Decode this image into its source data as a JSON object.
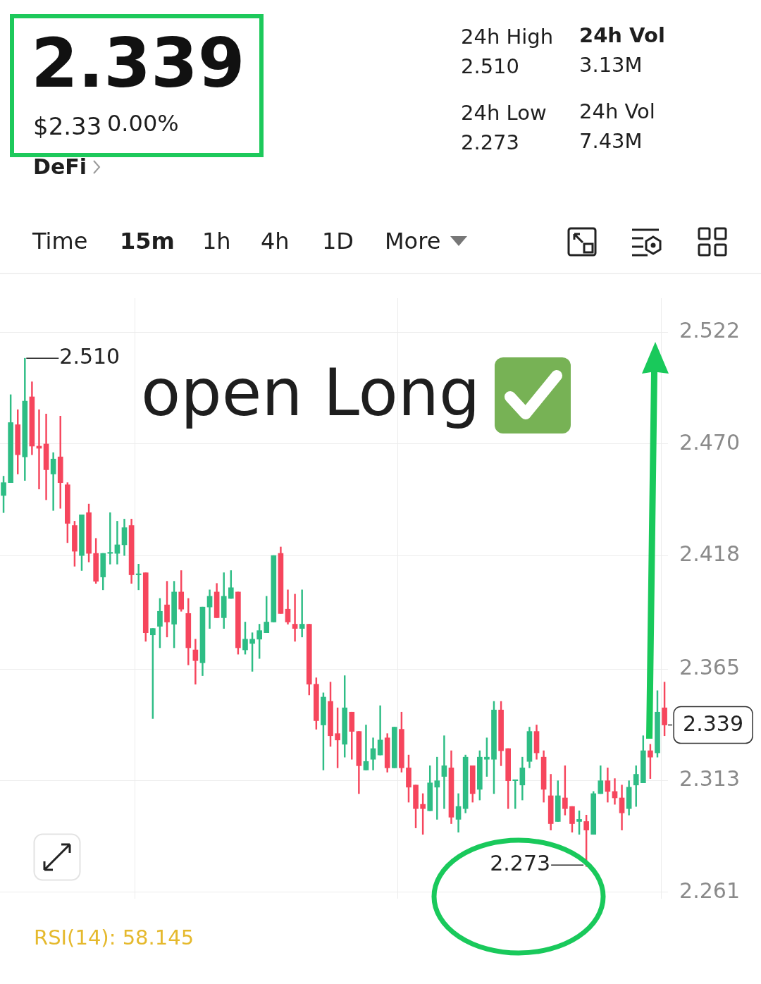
{
  "chart_data": {
    "type": "candlestick",
    "title": "2.339",
    "annotations": [
      "$2.33",
      "0.00%",
      "DeFi",
      "24h High",
      "2.510",
      "24h Vol",
      "3.13M",
      "24h Low",
      "2.273",
      "24h Vol",
      "7.43M",
      "Time",
      "15m",
      "1h",
      "4h",
      "1D",
      "More",
      "open Long",
      "2.510",
      "2.273",
      "RSI(14): 58.145"
    ],
    "categories": [
      null,
      null,
      null,
      null,
      null,
      null,
      null,
      null,
      null,
      null,
      null,
      null,
      null,
      null,
      null,
      null,
      null,
      null,
      null,
      null,
      null,
      null,
      null,
      null,
      null,
      null,
      null,
      null,
      null,
      null,
      null,
      null,
      null,
      null,
      null,
      null,
      null,
      null,
      null,
      null,
      null,
      null,
      null,
      null,
      null,
      null,
      null,
      null,
      null,
      null,
      null,
      null,
      null,
      null,
      null,
      null,
      null,
      null,
      null,
      null,
      null,
      null,
      null,
      null,
      null,
      null,
      null,
      null,
      null,
      null,
      null,
      null,
      null,
      null,
      null,
      null,
      null,
      null,
      null,
      null,
      null,
      null,
      null,
      null,
      null,
      null,
      null,
      null,
      null,
      null,
      null,
      null,
      null,
      null
    ],
    "ohlc": [
      [
        2.446,
        2.455,
        2.438,
        2.452
      ],
      [
        2.452,
        2.493,
        2.452,
        2.48
      ],
      [
        2.479,
        2.486,
        2.456,
        2.465
      ],
      [
        2.464,
        2.51,
        2.453,
        2.49
      ],
      [
        2.492,
        2.499,
        2.465,
        2.469
      ],
      [
        2.469,
        2.486,
        2.449,
        2.468
      ],
      [
        2.47,
        2.484,
        2.444,
        2.458
      ],
      [
        2.456,
        2.466,
        2.439,
        2.463
      ],
      [
        2.464,
        2.483,
        2.44,
        2.452
      ],
      [
        2.451,
        2.452,
        2.424,
        2.433
      ],
      [
        2.432,
        2.434,
        2.413,
        2.42
      ],
      [
        2.418,
        2.437,
        2.411,
        2.437
      ],
      [
        2.438,
        2.442,
        2.415,
        2.419
      ],
      [
        2.419,
        2.426,
        2.405,
        2.406
      ],
      [
        2.408,
        2.419,
        2.402,
        2.419
      ],
      [
        2.419,
        2.438,
        2.414,
        2.419
      ],
      [
        2.419,
        2.434,
        2.414,
        2.423
      ],
      [
        2.423,
        2.435,
        2.418,
        2.431
      ],
      [
        2.432,
        2.435,
        2.405,
        2.409
      ],
      [
        2.409,
        2.414,
        2.402,
        2.409
      ],
      [
        2.41,
        2.41,
        2.378,
        2.382
      ],
      [
        2.381,
        2.384,
        2.342,
        2.384
      ],
      [
        2.385,
        2.398,
        2.375,
        2.392
      ],
      [
        2.395,
        2.406,
        2.38,
        2.387
      ],
      [
        2.386,
        2.406,
        2.375,
        2.401
      ],
      [
        2.401,
        2.411,
        2.392,
        2.393
      ],
      [
        2.391,
        2.398,
        2.367,
        2.375
      ],
      [
        2.374,
        2.379,
        2.358,
        2.369
      ],
      [
        2.368,
        2.394,
        2.362,
        2.394
      ],
      [
        2.394,
        2.402,
        2.384,
        2.399
      ],
      [
        2.401,
        2.405,
        2.389,
        2.389
      ],
      [
        2.389,
        2.41,
        2.384,
        2.399
      ],
      [
        2.398,
        2.411,
        2.398,
        2.403
      ],
      [
        2.401,
        2.401,
        2.372,
        2.375
      ],
      [
        2.374,
        2.387,
        2.372,
        2.379
      ],
      [
        2.377,
        2.382,
        2.364,
        2.379
      ],
      [
        2.379,
        2.386,
        2.37,
        2.383
      ],
      [
        2.382,
        2.399,
        2.382,
        2.387
      ],
      [
        2.387,
        2.418,
        2.387,
        2.418
      ],
      [
        2.419,
        2.422,
        2.391,
        2.391
      ],
      [
        2.393,
        2.402,
        2.386,
        2.387
      ],
      [
        2.386,
        2.4,
        2.378,
        2.384
      ],
      [
        2.384,
        2.402,
        2.38,
        2.386
      ],
      [
        2.386,
        2.386,
        2.353,
        2.358
      ],
      [
        2.358,
        2.361,
        2.337,
        2.341
      ],
      [
        2.339,
        2.354,
        2.318,
        2.352
      ],
      [
        2.35,
        2.359,
        2.329,
        2.334
      ],
      [
        2.335,
        2.347,
        2.319,
        2.332
      ],
      [
        2.33,
        2.362,
        2.324,
        2.347
      ],
      [
        2.345,
        2.345,
        2.323,
        2.336
      ],
      [
        2.336,
        2.336,
        2.307,
        2.32
      ],
      [
        2.318,
        2.339,
        2.318,
        2.322
      ],
      [
        2.323,
        2.333,
        2.318,
        2.328
      ],
      [
        2.325,
        2.348,
        2.325,
        2.332
      ],
      [
        2.333,
        2.335,
        2.317,
        2.319
      ],
      [
        2.319,
        2.338,
        2.319,
        2.338
      ],
      [
        2.337,
        2.345,
        2.317,
        2.319
      ],
      [
        2.319,
        2.325,
        2.303,
        2.31
      ],
      [
        2.311,
        2.311,
        2.291,
        2.3
      ],
      [
        2.302,
        2.307,
        2.288,
        2.3
      ],
      [
        2.299,
        2.32,
        2.299,
        2.312
      ],
      [
        2.31,
        2.324,
        2.295,
        2.313
      ],
      [
        2.315,
        2.334,
        2.3,
        2.32
      ],
      [
        2.319,
        2.327,
        2.293,
        2.296
      ],
      [
        2.295,
        2.307,
        2.289,
        2.301
      ],
      [
        2.3,
        2.325,
        2.298,
        2.324
      ],
      [
        2.32,
        2.32,
        2.303,
        2.307
      ],
      [
        2.309,
        2.327,
        2.304,
        2.324
      ],
      [
        2.323,
        2.333,
        2.315,
        2.324
      ],
      [
        2.323,
        2.35,
        2.307,
        2.346
      ],
      [
        2.346,
        2.35,
        2.32,
        2.327
      ],
      [
        2.328,
        2.328,
        2.3,
        2.313
      ],
      [
        2.313,
        2.313,
        2.3,
        2.313
      ],
      [
        2.311,
        2.324,
        2.304,
        2.319
      ],
      [
        2.322,
        2.338,
        2.319,
        2.336
      ],
      [
        2.336,
        2.339,
        2.323,
        2.326
      ],
      [
        2.324,
        2.327,
        2.303,
        2.309
      ],
      [
        2.306,
        2.316,
        2.29,
        2.293
      ],
      [
        2.294,
        2.313,
        2.294,
        2.306
      ],
      [
        2.305,
        2.32,
        2.297,
        2.3
      ],
      [
        2.301,
        2.301,
        2.289,
        2.293
      ],
      [
        2.294,
        2.299,
        2.288,
        2.295
      ],
      [
        2.294,
        2.297,
        2.273,
        2.29
      ],
      [
        2.288,
        2.308,
        2.288,
        2.307
      ],
      [
        2.307,
        2.32,
        2.307,
        2.313
      ],
      [
        2.313,
        2.319,
        2.303,
        2.308
      ],
      [
        2.308,
        2.314,
        2.302,
        2.305
      ],
      [
        2.305,
        2.311,
        2.29,
        2.298
      ],
      [
        2.3,
        2.313,
        2.297,
        2.31
      ],
      [
        2.311,
        2.32,
        2.301,
        2.316
      ],
      [
        2.312,
        2.334,
        2.312,
        2.327
      ],
      [
        2.327,
        2.33,
        2.314,
        2.324
      ],
      [
        2.326,
        2.355,
        2.324,
        2.345
      ],
      [
        2.347,
        2.359,
        2.334,
        2.339
      ]
    ],
    "ylim": [
      2.258,
      2.538
    ],
    "yticks": [
      2.522,
      {
        "value": 2.47,
        "label": "2.470"
      },
      2.418,
      2.365,
      2.313,
      2.261
    ],
    "ref_lines": [
      {
        "axis": "y",
        "value": 2.339,
        "label": "2.339",
        "line_style": "dashed"
      }
    ],
    "grid": true,
    "tick_labels": "y"
  }
}
